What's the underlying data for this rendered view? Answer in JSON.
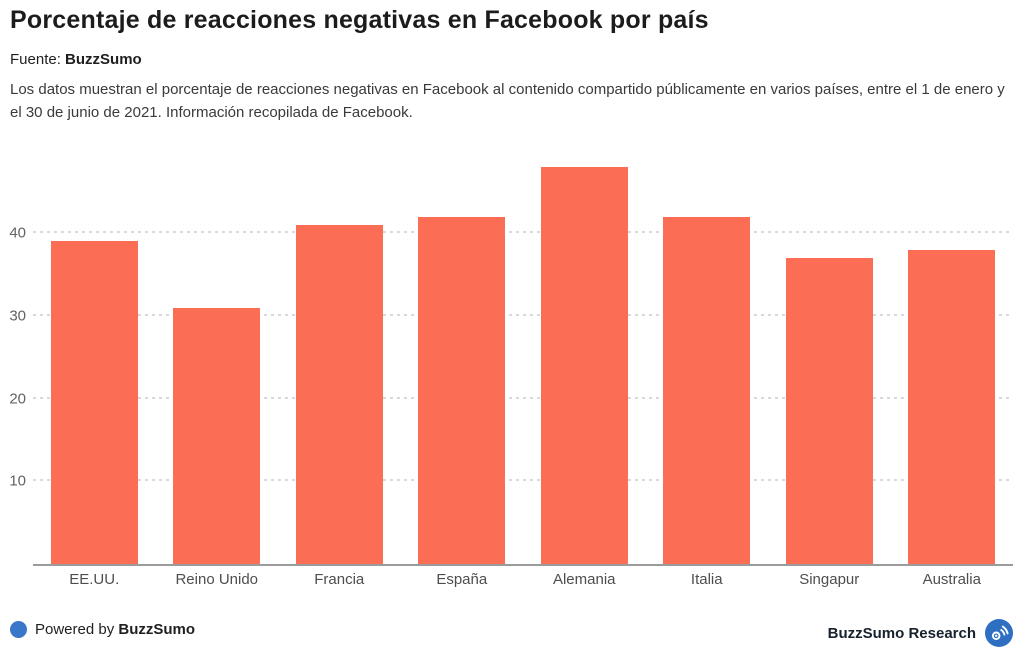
{
  "header": {
    "title": "Porcentaje de reacciones negativas en Facebook por país",
    "source_label": "Fuente:",
    "source_name": "BuzzSumo",
    "description": "Los datos muestran el porcentaje de reacciones negativas en Facebook al contenido compartido públicamente en varios países, entre el 1 de enero y el 30 de junio de 2021. Información recopilada de Facebook."
  },
  "chart_data": {
    "type": "bar",
    "categories": [
      "EE.UU.",
      "Reino Unido",
      "Francia",
      "España",
      "Alemania",
      "Italia",
      "Singapur",
      "Australia"
    ],
    "values": [
      39,
      31,
      41,
      42,
      48,
      42,
      37,
      38
    ],
    "title": "Porcentaje de reacciones negativas en Facebook por país",
    "xlabel": "",
    "ylabel": "",
    "ylim": [
      0,
      50
    ],
    "yticks": [
      10,
      20,
      30,
      40
    ],
    "grid": "horizontal-dashed",
    "legend": "none",
    "bar_color": "#fb6d55"
  },
  "footer": {
    "powered_by_label": "Powered by",
    "powered_by_brand": "BuzzSumo",
    "research_label": "BuzzSumo Research"
  },
  "colors": {
    "bar": "#fb6d55",
    "accent_blue": "#3b77c9",
    "logo_blue": "#2e6fc2",
    "axis_line": "#9b9b9b",
    "gridline": "#d9d9d9"
  },
  "icons": {
    "blue-dot-icon": "solid blue circle",
    "buzzsumo-logo-icon": "blue circle with white signal/target glyph"
  }
}
